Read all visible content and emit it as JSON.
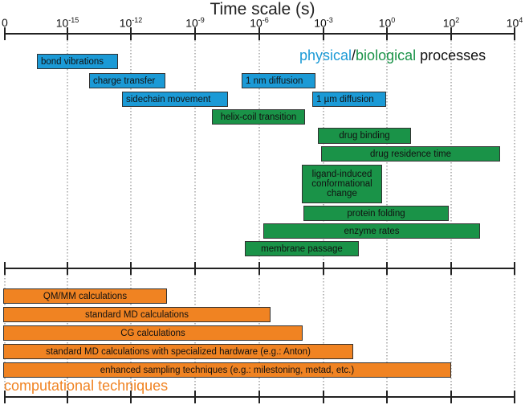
{
  "title": "Time scale (s)",
  "axis": {
    "ticks": [
      {
        "base": "0",
        "exp": ""
      },
      {
        "base": "10",
        "exp": "-15"
      },
      {
        "base": "10",
        "exp": "-12"
      },
      {
        "base": "10",
        "exp": "-9"
      },
      {
        "base": "10",
        "exp": "-6"
      },
      {
        "base": "10",
        "exp": "-3"
      },
      {
        "base": "10",
        "exp": "0"
      },
      {
        "base": "10",
        "exp": "2"
      },
      {
        "base": "10",
        "exp": "4"
      }
    ]
  },
  "legend": {
    "physical": "physical",
    "slash": "/",
    "biological": "biological",
    "processes": " processes",
    "physical_color": "#1b9ad6",
    "biological_color": "#1a9348"
  },
  "processes": [
    {
      "label": "bond vibrations",
      "kind": "physical"
    },
    {
      "label": "charge transfer",
      "kind": "physical"
    },
    {
      "label": "1 nm diffusion",
      "kind": "physical"
    },
    {
      "label": "sidechain movement",
      "kind": "physical"
    },
    {
      "label": "1 µm diffusion",
      "kind": "physical"
    },
    {
      "label": "helix-coil transition",
      "kind": "biological"
    },
    {
      "label": "drug binding",
      "kind": "biological"
    },
    {
      "label": "drug residence time",
      "kind": "biological"
    },
    {
      "label": "ligand-induced conformational change",
      "kind": "biological"
    },
    {
      "label": "protein folding",
      "kind": "biological"
    },
    {
      "label": "enzyme rates",
      "kind": "biological"
    },
    {
      "label": "membrane passage",
      "kind": "biological"
    }
  ],
  "techniques": [
    {
      "label": "QM/MM calculations"
    },
    {
      "label": "standard MD calculations"
    },
    {
      "label": "CG calculations"
    },
    {
      "label": "standard MD calculations with specialized hardware (e.g.: Anton)"
    },
    {
      "label": "enhanced sampling techniques (e.g.: milestoning, metad, etc.)"
    }
  ],
  "techniques_label": "computational techniques",
  "colors": {
    "physical": "#1b9ad6",
    "biological": "#1a9348",
    "computational": "#f08322",
    "axis": "#222222"
  }
}
